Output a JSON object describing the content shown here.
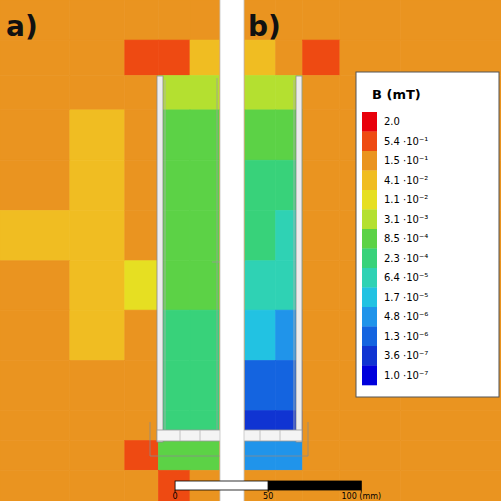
{
  "chart_data": {
    "type": "heatmap",
    "panels": [
      "a)",
      "b)"
    ],
    "tick_labels": false,
    "xlim": [
      -94,
      175
    ],
    "ylim": [
      0,
      269
    ],
    "x_edges": [
      -94,
      -56.5,
      -27,
      -9,
      8,
      24,
      37.5,
      54,
      68.5,
      88.5,
      121,
      175
    ],
    "y_edges": [
      0,
      21.5,
      40.5,
      59,
      86,
      113,
      140,
      166.5,
      193.5,
      220.5,
      236.5,
      252.5,
      269
    ],
    "values": [
      [
        0.15,
        0.15,
        0.15,
        0.15,
        0.15,
        0.15,
        0.15,
        0.15,
        0.15,
        0.15,
        0.15
      ],
      [
        0.15,
        0.15,
        0.54,
        0.54,
        0.041,
        0.15,
        0.041,
        0.15,
        0.54,
        0.15,
        0.15
      ],
      [
        0.15,
        0.15,
        0.15,
        0.0031,
        0.0031,
        0.15,
        0.0031,
        0.0031,
        0.15,
        0.15,
        0.15
      ],
      [
        0.15,
        0.041,
        0.15,
        0.00085,
        0.00085,
        0.15,
        0.00085,
        0.00085,
        0.15,
        0.15,
        0.15
      ],
      [
        0.15,
        0.041,
        0.15,
        0.00085,
        0.00085,
        0.15,
        0.00023,
        0.00023,
        0.15,
        0.15,
        0.15
      ],
      [
        0.041,
        0.041,
        0.15,
        0.00085,
        0.00085,
        0.15,
        0.00023,
        6.4e-05,
        0.15,
        0.15,
        0.15
      ],
      [
        0.15,
        0.041,
        0.011,
        0.00085,
        0.00085,
        0.15,
        6.4e-05,
        6.4e-05,
        0.15,
        0.15,
        0.15
      ],
      [
        0.15,
        0.041,
        0.15,
        0.00023,
        0.00023,
        0.15,
        1.7e-05,
        4.8e-06,
        0.15,
        0.15,
        0.15
      ],
      [
        0.15,
        0.15,
        0.15,
        0.00023,
        0.00023,
        0.15,
        1.3e-06,
        1.3e-06,
        0.15,
        0.15,
        0.15
      ],
      [
        0.15,
        0.15,
        0.15,
        0.00023,
        0.00023,
        0.15,
        3.6e-07,
        3.6e-07,
        0.15,
        0.15,
        0.15
      ],
      [
        0.15,
        0.15,
        0.54,
        0.00085,
        0.00085,
        0.15,
        4.8e-06,
        4.8e-06,
        0.15,
        0.15,
        0.15
      ],
      [
        0.15,
        0.15,
        0.15,
        0.54,
        0.15,
        0.15,
        0.15,
        0.15,
        0.15,
        0.15,
        0.15
      ]
    ],
    "colorbar": {
      "title": "B (mT)",
      "log": true,
      "ticks": [
        {
          "value": 2.0,
          "label": "2.0"
        },
        {
          "value": 0.54,
          "label": "5.4 ·10⁻¹"
        },
        {
          "value": 0.15,
          "label": "1.5 ·10⁻¹"
        },
        {
          "value": 0.041,
          "label": "4.1 ·10⁻²"
        },
        {
          "value": 0.011,
          "label": "1.1 ·10⁻²"
        },
        {
          "value": 0.0031,
          "label": "3.1 ·10⁻³"
        },
        {
          "value": 0.00085,
          "label": "8.5 ·10⁻⁴"
        },
        {
          "value": 0.00023,
          "label": "2.3 ·10⁻⁴"
        },
        {
          "value": 6.4e-05,
          "label": "6.4 ·10⁻⁵"
        },
        {
          "value": 1.7e-05,
          "label": "1.7 ·10⁻⁵"
        },
        {
          "value": 4.8e-06,
          "label": "4.8 ·10⁻⁶"
        },
        {
          "value": 1.3e-06,
          "label": "1.3 ·10⁻⁶"
        },
        {
          "value": 3.6e-07,
          "label": "3.6 ·10⁻⁷"
        },
        {
          "value": 1e-07,
          "label": "1.0 ·10⁻⁷"
        }
      ],
      "colors": [
        "#e8000b",
        "#ee4a12",
        "#ea9420",
        "#f0bd22",
        "#e6df22",
        "#b4e030",
        "#5cd246",
        "#38d27a",
        "#2fd2b4",
        "#22c2e2",
        "#2094ea",
        "#1464e0",
        "#1034d2",
        "#0000dc"
      ]
    },
    "scale_bar": {
      "ticks": [
        {
          "value": 0,
          "label": "0"
        },
        {
          "value": 50,
          "label": "50"
        },
        {
          "value": 100,
          "label": "100 (mm)"
        }
      ]
    }
  }
}
